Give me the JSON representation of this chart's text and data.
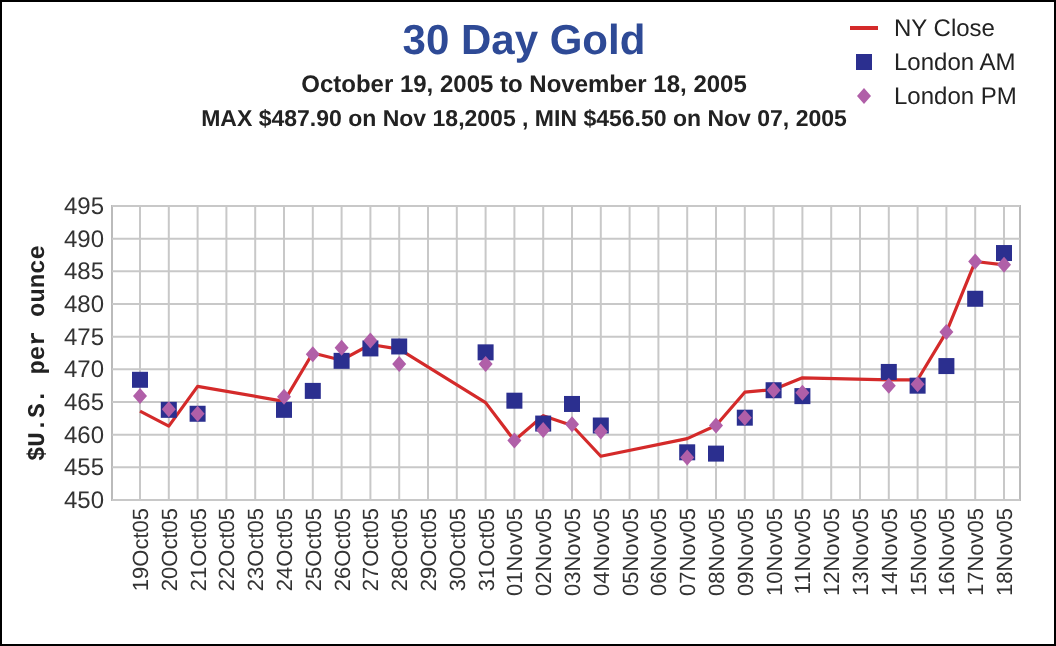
{
  "chart_data": {
    "type": "line",
    "title": "30 Day Gold",
    "subtitle": "October 19, 2005 to November 18, 2005",
    "annotations": [
      "MAX $487.90 on Nov 18,2005 , MIN $456.50 on Nov 07, 2005"
    ],
    "ylabel": "$U.S. per ounce",
    "categories": [
      "19Oct05",
      "20Oct05",
      "21Oct05",
      "22Oct05",
      "23Oct05",
      "24Oct05",
      "25Oct05",
      "26Oct05",
      "27Oct05",
      "28Oct05",
      "29Oct05",
      "30Oct05",
      "31Oct05",
      "01Nov05",
      "02Nov05",
      "03Nov05",
      "04Nov05",
      "05Nov05",
      "06Nov05",
      "07Nov05",
      "08Nov05",
      "09Nov05",
      "10Nov05",
      "11Nov05",
      "12Nov05",
      "13Nov05",
      "14Nov05",
      "15Nov05",
      "16Nov05",
      "17Nov05",
      "18Nov05"
    ],
    "series": [
      {
        "name": "NY Close",
        "color": "#d42a2a",
        "marker": "none",
        "values": [
          463.6,
          461.3,
          467.4,
          null,
          null,
          465.1,
          472.5,
          471.4,
          473.8,
          473.1,
          null,
          null,
          464.9,
          459.1,
          462.9,
          461.4,
          456.7,
          null,
          null,
          459.4,
          461.4,
          466.5,
          466.9,
          468.7,
          null,
          null,
          468.4,
          468.4,
          475.7,
          486.5,
          486.0
        ]
      },
      {
        "name": "London AM",
        "type": "scatter",
        "color": "#2b2f8f",
        "marker": "square",
        "values": [
          468.4,
          463.8,
          463.2,
          null,
          null,
          463.8,
          466.7,
          471.3,
          473.2,
          473.5,
          null,
          null,
          472.6,
          465.2,
          461.7,
          464.7,
          461.4,
          null,
          null,
          457.3,
          457.1,
          462.6,
          466.8,
          465.9,
          null,
          null,
          469.6,
          467.5,
          470.5,
          480.8,
          487.8
        ]
      },
      {
        "name": "London PM",
        "type": "scatter",
        "color": "#b05fa8",
        "marker": "diamond",
        "values": [
          465.9,
          463.9,
          463.2,
          null,
          null,
          465.8,
          472.3,
          473.3,
          474.4,
          470.8,
          null,
          null,
          470.8,
          459.1,
          460.7,
          461.6,
          460.5,
          null,
          null,
          456.5,
          461.4,
          462.6,
          466.8,
          466.4,
          null,
          null,
          467.5,
          467.7,
          475.7,
          486.5,
          486.0
        ]
      }
    ],
    "ylim": [
      450,
      495
    ],
    "yticks": [
      450,
      455,
      460,
      465,
      470,
      475,
      480,
      485,
      490,
      495
    ],
    "grid": true,
    "legend": "top right"
  }
}
